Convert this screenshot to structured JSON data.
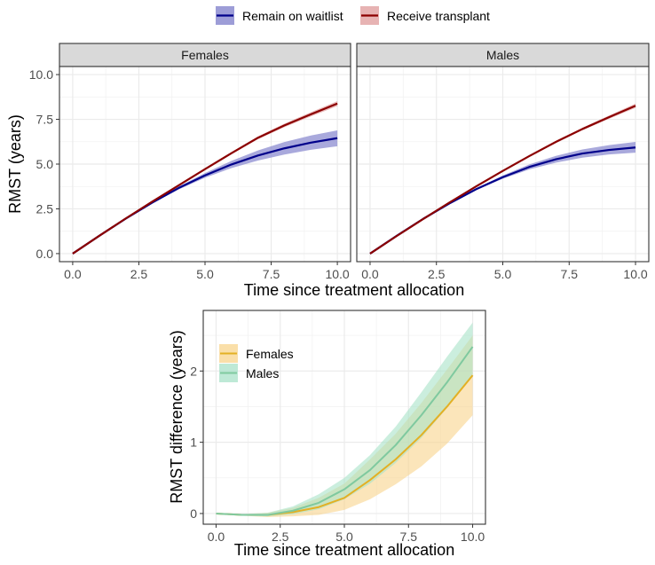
{
  "chart_data": [
    {
      "type": "line",
      "facets": [
        "Females",
        "Males"
      ],
      "xlabel": "Time since treatment allocation",
      "ylabel": "RMST (years)",
      "xlim": [
        0,
        10
      ],
      "ylim": [
        0,
        10
      ],
      "xticks": [
        "0.0",
        "2.5",
        "5.0",
        "7.5",
        "10.0"
      ],
      "yticks": [
        "0.0",
        "2.5",
        "5.0",
        "7.5",
        "10.0"
      ],
      "grid": true,
      "legend_position": "top",
      "x": [
        0,
        1,
        2,
        3,
        4,
        5,
        6,
        7,
        8,
        9,
        10
      ],
      "series": [
        {
          "name": "Remain on waitlist",
          "color": "#00008B",
          "band_color": "#8C8CD0",
          "values": {
            "Females": [
              0,
              0.99,
              1.95,
              2.84,
              3.66,
              4.37,
              4.98,
              5.48,
              5.88,
              6.2,
              6.45
            ],
            "Males": [
              0,
              0.99,
              1.94,
              2.81,
              3.6,
              4.27,
              4.84,
              5.27,
              5.59,
              5.79,
              5.93
            ]
          },
          "lower": {
            "Females": [
              0,
              0.99,
              1.94,
              2.81,
              3.58,
              4.24,
              4.78,
              5.2,
              5.53,
              5.8,
              6.0
            ],
            "Males": [
              0,
              0.99,
              1.93,
              2.79,
              3.55,
              4.18,
              4.7,
              5.08,
              5.36,
              5.54,
              5.64
            ]
          },
          "upper": {
            "Females": [
              0,
              0.99,
              1.96,
              2.87,
              3.74,
              4.5,
              5.18,
              5.76,
              6.23,
              6.6,
              6.88
            ],
            "Males": [
              0,
              0.99,
              1.95,
              2.83,
              3.65,
              4.36,
              4.98,
              5.46,
              5.82,
              6.06,
              6.24
            ]
          }
        },
        {
          "name": "Receive transplant",
          "color": "#8B0000",
          "band_color": "#E3A6A6",
          "values": {
            "Females": [
              0,
              0.99,
              1.96,
              2.9,
              3.81,
              4.72,
              5.61,
              6.47,
              7.16,
              7.78,
              8.38
            ],
            "Males": [
              0,
              0.98,
              1.93,
              2.86,
              3.76,
              4.62,
              5.45,
              6.24,
              6.96,
              7.62,
              8.26
            ]
          },
          "lower": {
            "Females": [
              0,
              0.99,
              1.96,
              2.89,
              3.79,
              4.68,
              5.55,
              6.39,
              7.06,
              7.66,
              8.24
            ],
            "Males": [
              0,
              0.98,
              1.93,
              2.85,
              3.74,
              4.59,
              5.41,
              6.18,
              6.89,
              7.53,
              8.14
            ]
          },
          "upper": {
            "Females": [
              0,
              0.99,
              1.96,
              2.91,
              3.83,
              4.76,
              5.67,
              6.55,
              7.26,
              7.9,
              8.52
            ],
            "Males": [
              0,
              0.98,
              1.93,
              2.87,
              3.78,
              4.65,
              5.49,
              6.3,
              7.03,
              7.71,
              8.38
            ]
          }
        }
      ]
    },
    {
      "type": "line",
      "xlabel": "Time since treatment allocation",
      "ylabel": "RMST difference (years)",
      "xlim": [
        0,
        10
      ],
      "ylim": [
        -0.1,
        2.7
      ],
      "xticks": [
        "0.0",
        "2.5",
        "5.0",
        "7.5",
        "10.0"
      ],
      "yticks": [
        "0",
        "1",
        "2"
      ],
      "grid": true,
      "legend_position": "top-left",
      "x": [
        0,
        1,
        2,
        3,
        4,
        5,
        6,
        7,
        8,
        9,
        10
      ],
      "series": [
        {
          "name": "Females",
          "color": "#E3B024",
          "band_color": "#F8D48C",
          "values": [
            0,
            -0.02,
            -0.02,
            0.02,
            0.09,
            0.22,
            0.47,
            0.76,
            1.1,
            1.5,
            1.94
          ],
          "lower": [
            0,
            -0.03,
            -0.05,
            -0.04,
            -0.02,
            0.05,
            0.2,
            0.41,
            0.66,
            0.98,
            1.38
          ],
          "upper": [
            0,
            -0.01,
            0.01,
            0.08,
            0.22,
            0.42,
            0.76,
            1.12,
            1.55,
            2.02,
            2.5
          ]
        },
        {
          "name": "Males",
          "color": "#7FC99F",
          "band_color": "#A8E2C8",
          "values": [
            0,
            -0.02,
            -0.02,
            0.04,
            0.15,
            0.34,
            0.61,
            0.96,
            1.38,
            1.84,
            2.34
          ],
          "lower": [
            0,
            -0.03,
            -0.04,
            -0.01,
            0.06,
            0.2,
            0.42,
            0.71,
            1.06,
            1.48,
            1.95
          ],
          "upper": [
            0,
            -0.01,
            0.01,
            0.1,
            0.27,
            0.5,
            0.82,
            1.22,
            1.7,
            2.2,
            2.68
          ]
        }
      ]
    }
  ]
}
